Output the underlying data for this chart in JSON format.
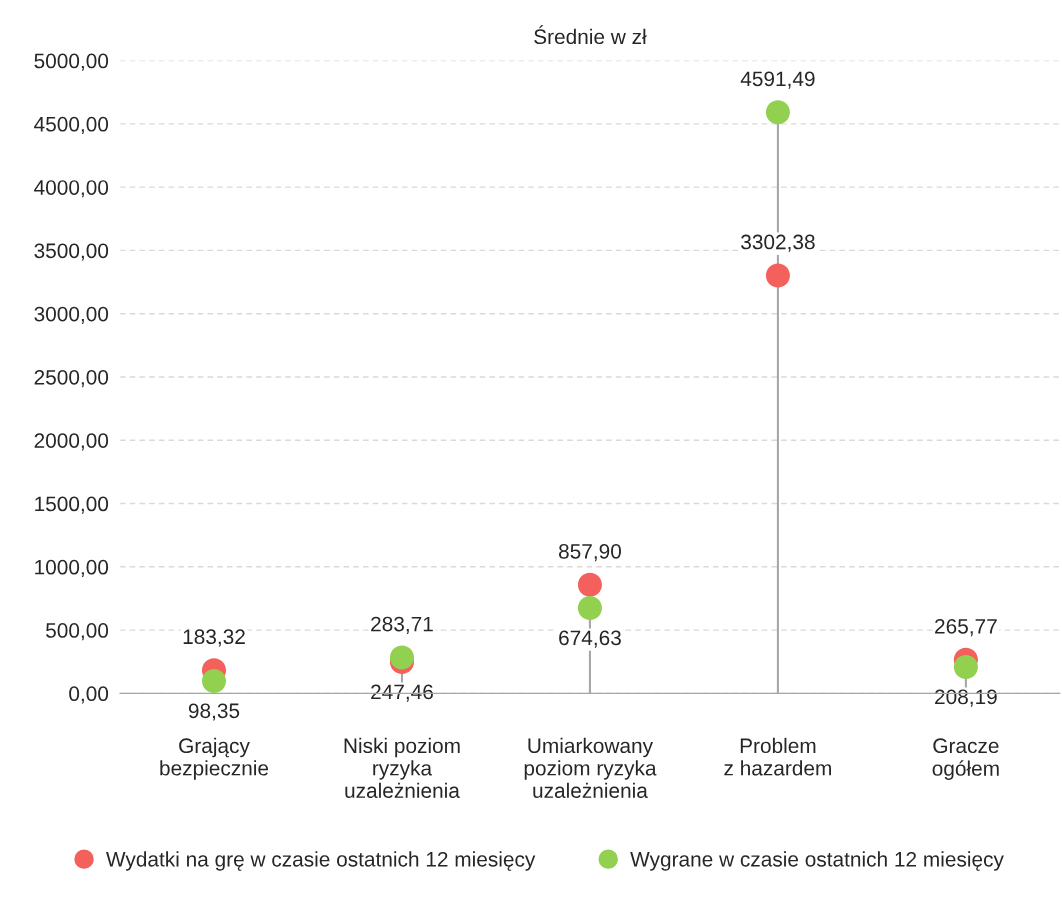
{
  "chart_data": {
    "type": "lollipop",
    "title": "Średnie w zł",
    "categories": [
      "Grający\nbezpiecznie",
      "Niski poziom\nryzyka\nuzależnienia",
      "Umiarkowany\npoziom ryzyka\nuzależnienia",
      "Problem\nz hazardem",
      "Gracze\nogółem"
    ],
    "series": [
      {
        "name": "Wydatki na grę w czasie ostatnich 12 miesięcy",
        "color": "#f4605c",
        "values": [
          183.32,
          247.46,
          857.9,
          3302.38,
          265.77
        ],
        "value_labels": [
          "183,32",
          "247,46",
          "857,90",
          "3302,38",
          "265,77"
        ]
      },
      {
        "name": "Wygrane w czasie ostatnich 12 miesięcy",
        "color": "#92d050",
        "values": [
          98.35,
          283.71,
          674.63,
          4591.49,
          208.19
        ],
        "value_labels": [
          "98,35",
          "283,71",
          "674,63",
          "4591,49",
          "208,19"
        ]
      }
    ],
    "ylim": [
      0,
      5000
    ],
    "yticks": [
      {
        "value": 0,
        "label": "0,00"
      },
      {
        "value": 500,
        "label": "500,00"
      },
      {
        "value": 1000,
        "label": "1000,00"
      },
      {
        "value": 1500,
        "label": "1500,00"
      },
      {
        "value": 2000,
        "label": "2000,00"
      },
      {
        "value": 2500,
        "label": "2500,00"
      },
      {
        "value": 3000,
        "label": "3000,00"
      },
      {
        "value": 3500,
        "label": "3500,00"
      },
      {
        "value": 4000,
        "label": "4000,00"
      },
      {
        "value": 4500,
        "label": "4500,00"
      },
      {
        "value": 5000,
        "label": "5000,00"
      }
    ],
    "grid": "y",
    "legend": "bottom",
    "marker": "circle"
  }
}
